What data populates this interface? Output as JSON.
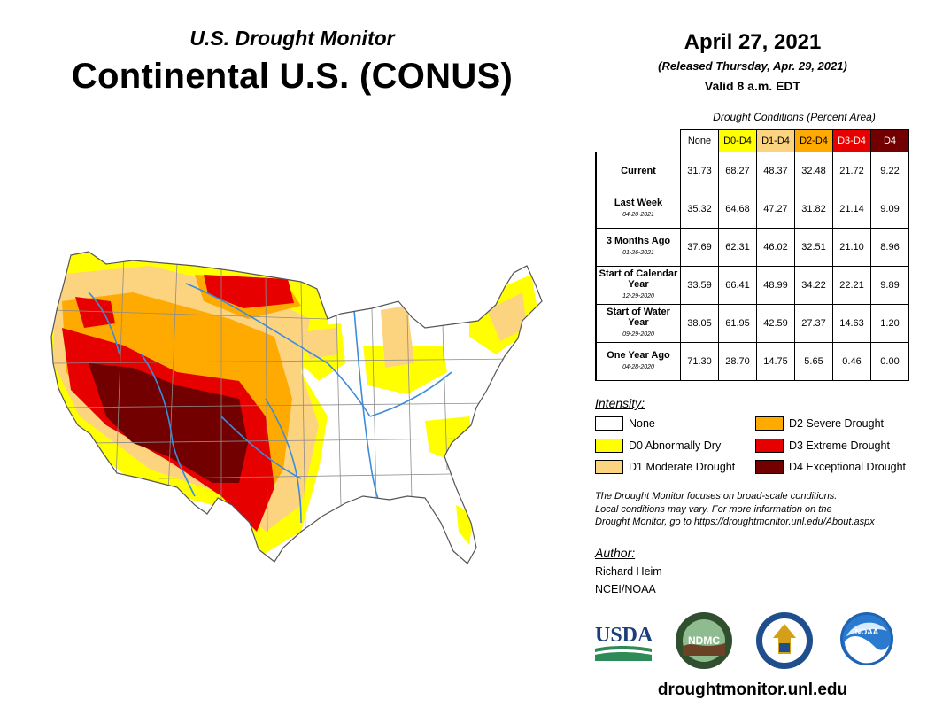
{
  "header": {
    "subtitle": "U.S. Drought Monitor",
    "title": "Continental U.S. (CONUS)",
    "date": "April 27, 2021",
    "released": "(Released Thursday, Apr. 29, 2021)",
    "valid": "Valid 8 a.m. EDT"
  },
  "table": {
    "caption": "Drought Conditions (Percent Area)",
    "columns": [
      {
        "label": "None",
        "color": "#ffffff",
        "text_color": "#000000"
      },
      {
        "label": "D0-D4",
        "color": "#ffff00",
        "text_color": "#000000"
      },
      {
        "label": "D1-D4",
        "color": "#fcd37f",
        "text_color": "#000000"
      },
      {
        "label": "D2-D4",
        "color": "#ffaa00",
        "text_color": "#000000"
      },
      {
        "label": "D3-D4",
        "color": "#e60000",
        "text_color": "#ffffff"
      },
      {
        "label": "D4",
        "color": "#730000",
        "text_color": "#ffffff"
      }
    ],
    "rows": [
      {
        "label": "Current",
        "date": "",
        "values": [
          "31.73",
          "68.27",
          "48.37",
          "32.48",
          "21.72",
          "9.22"
        ]
      },
      {
        "label": "Last Week",
        "date": "04-20-2021",
        "values": [
          "35.32",
          "64.68",
          "47.27",
          "31.82",
          "21.14",
          "9.09"
        ]
      },
      {
        "label": "3 Months Ago",
        "date": "01-26-2021",
        "values": [
          "37.69",
          "62.31",
          "46.02",
          "32.51",
          "21.10",
          "8.96"
        ]
      },
      {
        "label": "Start of Calendar Year",
        "date": "12-29-2020",
        "values": [
          "33.59",
          "66.41",
          "48.99",
          "34.22",
          "22.21",
          "9.89"
        ]
      },
      {
        "label": "Start of Water Year",
        "date": "09-29-2020",
        "values": [
          "38.05",
          "61.95",
          "42.59",
          "27.37",
          "14.63",
          "1.20"
        ]
      },
      {
        "label": "One Year Ago",
        "date": "04-28-2020",
        "values": [
          "71.30",
          "28.70",
          "14.75",
          "5.65",
          "0.46",
          "0.00"
        ]
      }
    ]
  },
  "legend": {
    "title": "Intensity:",
    "items": [
      {
        "label": "None",
        "color": "#ffffff"
      },
      {
        "label": "D0 Abnormally Dry",
        "color": "#ffff00"
      },
      {
        "label": "D1 Moderate Drought",
        "color": "#fcd37f"
      },
      {
        "label": "D2 Severe Drought",
        "color": "#ffaa00"
      },
      {
        "label": "D3 Extreme Drought",
        "color": "#e60000"
      },
      {
        "label": "D4 Exceptional Drought",
        "color": "#730000"
      }
    ]
  },
  "note": {
    "line1": "The Drought Monitor focuses on broad-scale conditions.",
    "line2": "Local conditions may vary. For more information on the",
    "line3": "Drought Monitor, go to https://droughtmonitor.unl.edu/About.aspx"
  },
  "author": {
    "title": "Author:",
    "name": "Richard Heim",
    "org": "NCEI/NOAA"
  },
  "logos": {
    "usda": "USDA",
    "ndmc": "NDMC",
    "noaa": "NOAA"
  },
  "website": "droughtmonitor.unl.edu",
  "map_colors": {
    "none": "#ffffff",
    "d0": "#ffff00",
    "d1": "#fcd37f",
    "d2": "#ffaa00",
    "d3": "#e60000",
    "d4": "#730000",
    "rivers": "#3c8cdc",
    "borders": "#8c8c8c"
  }
}
